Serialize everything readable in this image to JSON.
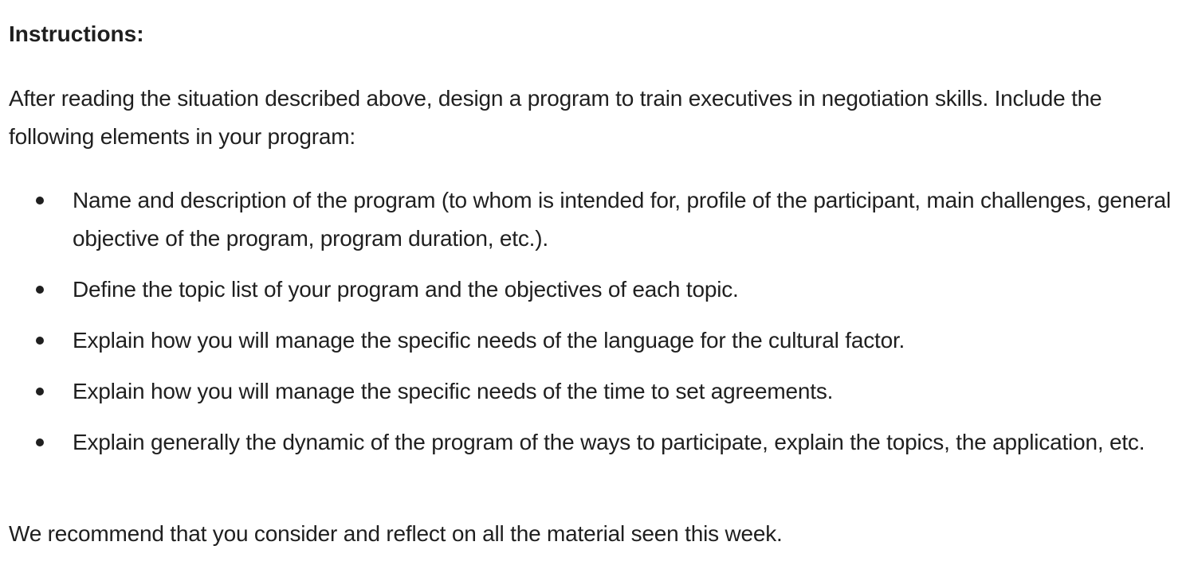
{
  "heading": "Instructions:",
  "intro": "After reading the situation described above, design a program to train executives in negotiation skills. Include the following elements in your program:",
  "items": [
    "Name and description of the program (to whom is intended for, profile of the participant, main challenges, general objective of the program, program duration, etc.).",
    "Define the topic list of your program and the objectives of each topic.",
    "Explain how you will manage the specific needs of the language for the cultural factor.",
    "Explain how you will manage the specific needs of the time to set agreements.",
    "Explain generally the dynamic of the program of the ways to participate, explain the topics, the application, etc."
  ],
  "closing": "We recommend that you consider and reflect on all the material seen this week."
}
